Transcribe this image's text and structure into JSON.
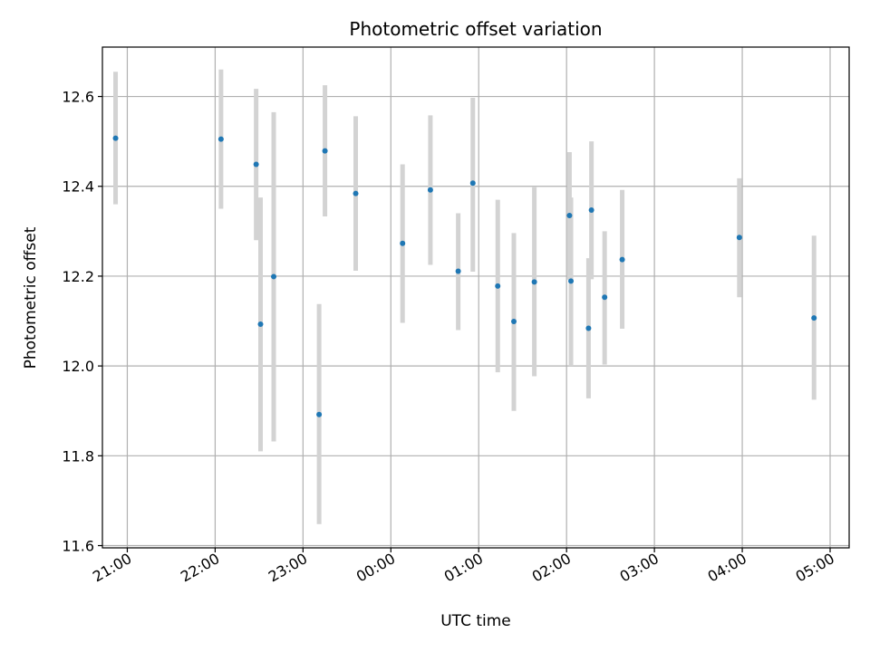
{
  "chart_data": {
    "type": "scatter",
    "title": "Photometric offset variation",
    "xlabel": "UTC time",
    "ylabel": "Photometric offset",
    "xlim": [
      "20:43",
      "05:13"
    ],
    "ylim": [
      11.595,
      12.71
    ],
    "xticks": [
      "21:00",
      "22:00",
      "23:00",
      "00:00",
      "01:00",
      "02:00",
      "03:00",
      "04:00",
      "05:00"
    ],
    "yticks": [
      "11.6",
      "11.8",
      "12.0",
      "12.2",
      "12.4",
      "12.6"
    ],
    "grid": true,
    "point_color": "#1f77b4",
    "errorbar_color": "#d3d3d3",
    "series": [
      {
        "points": [
          {
            "time": "20:52",
            "y": 12.507,
            "low": 12.36,
            "high": 12.655
          },
          {
            "time": "22:04",
            "y": 12.505,
            "low": 12.35,
            "high": 12.66
          },
          {
            "time": "22:28",
            "y": 12.449,
            "low": 12.28,
            "high": 12.617
          },
          {
            "time": "22:31",
            "y": 12.093,
            "low": 11.81,
            "high": 12.375
          },
          {
            "time": "22:40",
            "y": 12.199,
            "low": 11.832,
            "high": 12.565
          },
          {
            "time": "23:11",
            "y": 11.892,
            "low": 11.648,
            "high": 12.138
          },
          {
            "time": "23:15",
            "y": 12.479,
            "low": 12.333,
            "high": 12.625
          },
          {
            "time": "23:36",
            "y": 12.384,
            "low": 12.212,
            "high": 12.556
          },
          {
            "time": "00:08",
            "y": 12.273,
            "low": 12.096,
            "high": 12.449
          },
          {
            "time": "00:27",
            "y": 12.392,
            "low": 12.225,
            "high": 12.558
          },
          {
            "time": "00:46",
            "y": 12.211,
            "low": 12.08,
            "high": 12.34
          },
          {
            "time": "00:56",
            "y": 12.407,
            "low": 12.21,
            "high": 12.597
          },
          {
            "time": "01:13",
            "y": 12.178,
            "low": 11.986,
            "high": 12.37
          },
          {
            "time": "01:24",
            "y": 12.099,
            "low": 11.9,
            "high": 12.296
          },
          {
            "time": "01:38",
            "y": 12.187,
            "low": 11.977,
            "high": 12.398
          },
          {
            "time": "02:02",
            "y": 12.335,
            "low": 12.192,
            "high": 12.476
          },
          {
            "time": "02:03",
            "y": 12.189,
            "low": 12.0,
            "high": 12.375
          },
          {
            "time": "02:15",
            "y": 12.084,
            "low": 11.928,
            "high": 12.24
          },
          {
            "time": "02:17",
            "y": 12.347,
            "low": 12.193,
            "high": 12.5
          },
          {
            "time": "02:26",
            "y": 12.153,
            "low": 12.003,
            "high": 12.3
          },
          {
            "time": "02:38",
            "y": 12.237,
            "low": 12.083,
            "high": 12.392
          },
          {
            "time": "03:58",
            "y": 12.286,
            "low": 12.153,
            "high": 12.418
          },
          {
            "time": "04:49",
            "y": 12.107,
            "low": 11.925,
            "high": 12.29
          }
        ]
      }
    ]
  }
}
